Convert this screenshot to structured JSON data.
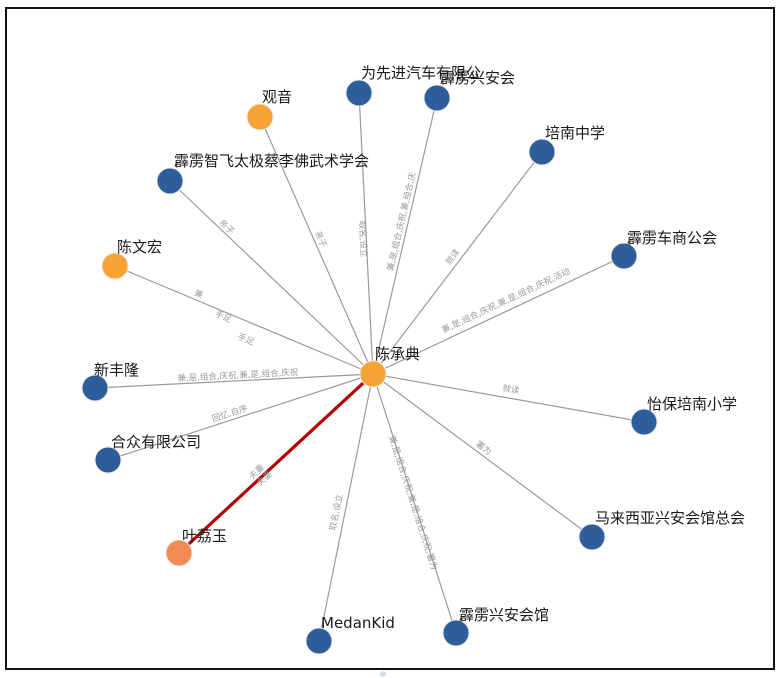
{
  "colors": {
    "org": "#2e5d9c",
    "person": "#f7a234",
    "selected_person": "#ef8c54",
    "edge": "#9a9a9a",
    "highlight_edge": "#b30000"
  },
  "center": {
    "id": "c",
    "label": "陈承典",
    "color": "#f7a234"
  },
  "nodes": [
    {
      "id": "n1",
      "label": "观音",
      "color": "#f7a234"
    },
    {
      "id": "n2",
      "label": "为先进汽车有限公",
      "color": "#2e5d9c"
    },
    {
      "id": "n3",
      "label": "霹雳兴安会",
      "color": "#2e5d9c"
    },
    {
      "id": "n4",
      "label": "培南中学",
      "color": "#2e5d9c"
    },
    {
      "id": "n5",
      "label": "霹雳智飞太极蔡李佛武术学会",
      "color": "#2e5d9c"
    },
    {
      "id": "n6",
      "label": "陈文宏",
      "color": "#f7a234"
    },
    {
      "id": "n7",
      "label": "霹雳车商公会",
      "color": "#2e5d9c"
    },
    {
      "id": "n8",
      "label": "新丰隆",
      "color": "#2e5d9c"
    },
    {
      "id": "n9",
      "label": "怡保培南小学",
      "color": "#2e5d9c"
    },
    {
      "id": "n10",
      "label": "合众有限公司",
      "color": "#2e5d9c"
    },
    {
      "id": "n11",
      "label": "马来西亚兴安会馆总会",
      "color": "#2e5d9c"
    },
    {
      "id": "n12",
      "label": "叶荔玉",
      "color": "#ef8c54"
    },
    {
      "id": "n13",
      "label": "MedanKid",
      "color": "#2e5d9c"
    },
    {
      "id": "n14",
      "label": "霹雳兴安会馆",
      "color": "#2e5d9c"
    }
  ],
  "edges": [
    {
      "target": "n1",
      "label": "亲子"
    },
    {
      "target": "n2",
      "label": "取名,设立"
    },
    {
      "target": "n3",
      "label": "兼,是,组合,庆祝,兼,组合,庆"
    },
    {
      "target": "n4",
      "label": "就读"
    },
    {
      "target": "n5",
      "label": "亲子"
    },
    {
      "target": "n6",
      "label": "兼"
    },
    {
      "target": "n6b",
      "label": "手足"
    },
    {
      "target": "n6c",
      "label": "手足"
    },
    {
      "target": "n7",
      "label": "兼,是,组合,庆祝,兼,是,组合,庆祝,活动"
    },
    {
      "target": "n8",
      "label": "兼,是,组合,庆祝,兼,是,组合,庆祝"
    },
    {
      "target": "n9",
      "label": "就读"
    },
    {
      "target": "n10",
      "label": "回忆,自ание"
    },
    {
      "target": "n11",
      "label": "署为"
    },
    {
      "target": "n12",
      "label": "夫妻"
    },
    {
      "target": "n12b",
      "label": "夫妻"
    },
    {
      "target": "n13",
      "label": "取名,设立"
    },
    {
      "target": "n14",
      "label": "兼,是,组合,庆祝,兼,是,组合,庆祝,署为"
    }
  ]
}
